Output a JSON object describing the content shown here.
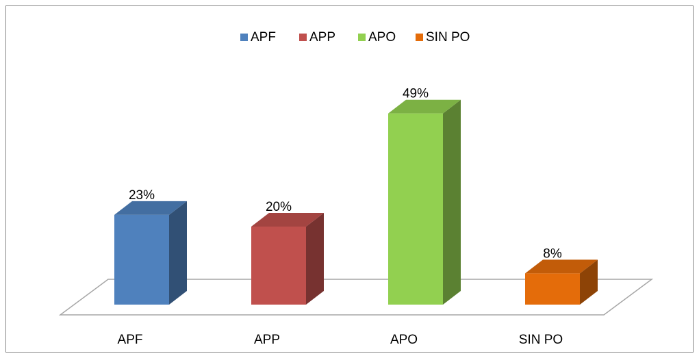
{
  "chart_data": {
    "type": "bar3d",
    "categories": [
      "APF",
      "APP",
      "APO",
      "SIN PO"
    ],
    "values": [
      23,
      20,
      49,
      8
    ],
    "value_labels": [
      "23%",
      "20%",
      "49%",
      "8%"
    ],
    "colors": [
      "#4f81bd",
      "#c0504d",
      "#92d050",
      "#e46c0a"
    ],
    "ylim": [
      0,
      50
    ],
    "legend": "top"
  }
}
